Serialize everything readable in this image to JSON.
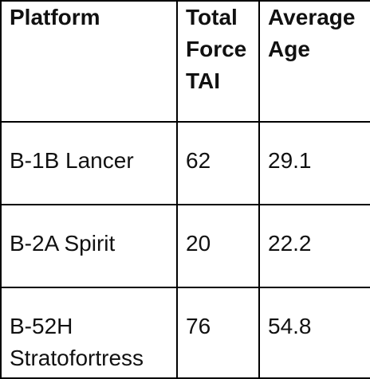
{
  "table": {
    "header": [
      "Platform",
      "Total Force TAI",
      "Average Age"
    ],
    "rows": [
      [
        "B-1B Lancer",
        "62",
        "29.1"
      ],
      [
        "B-2A Spirit",
        "20",
        "22.2"
      ],
      [
        "B-52H Stratofortress",
        "76",
        "54.8"
      ]
    ]
  }
}
